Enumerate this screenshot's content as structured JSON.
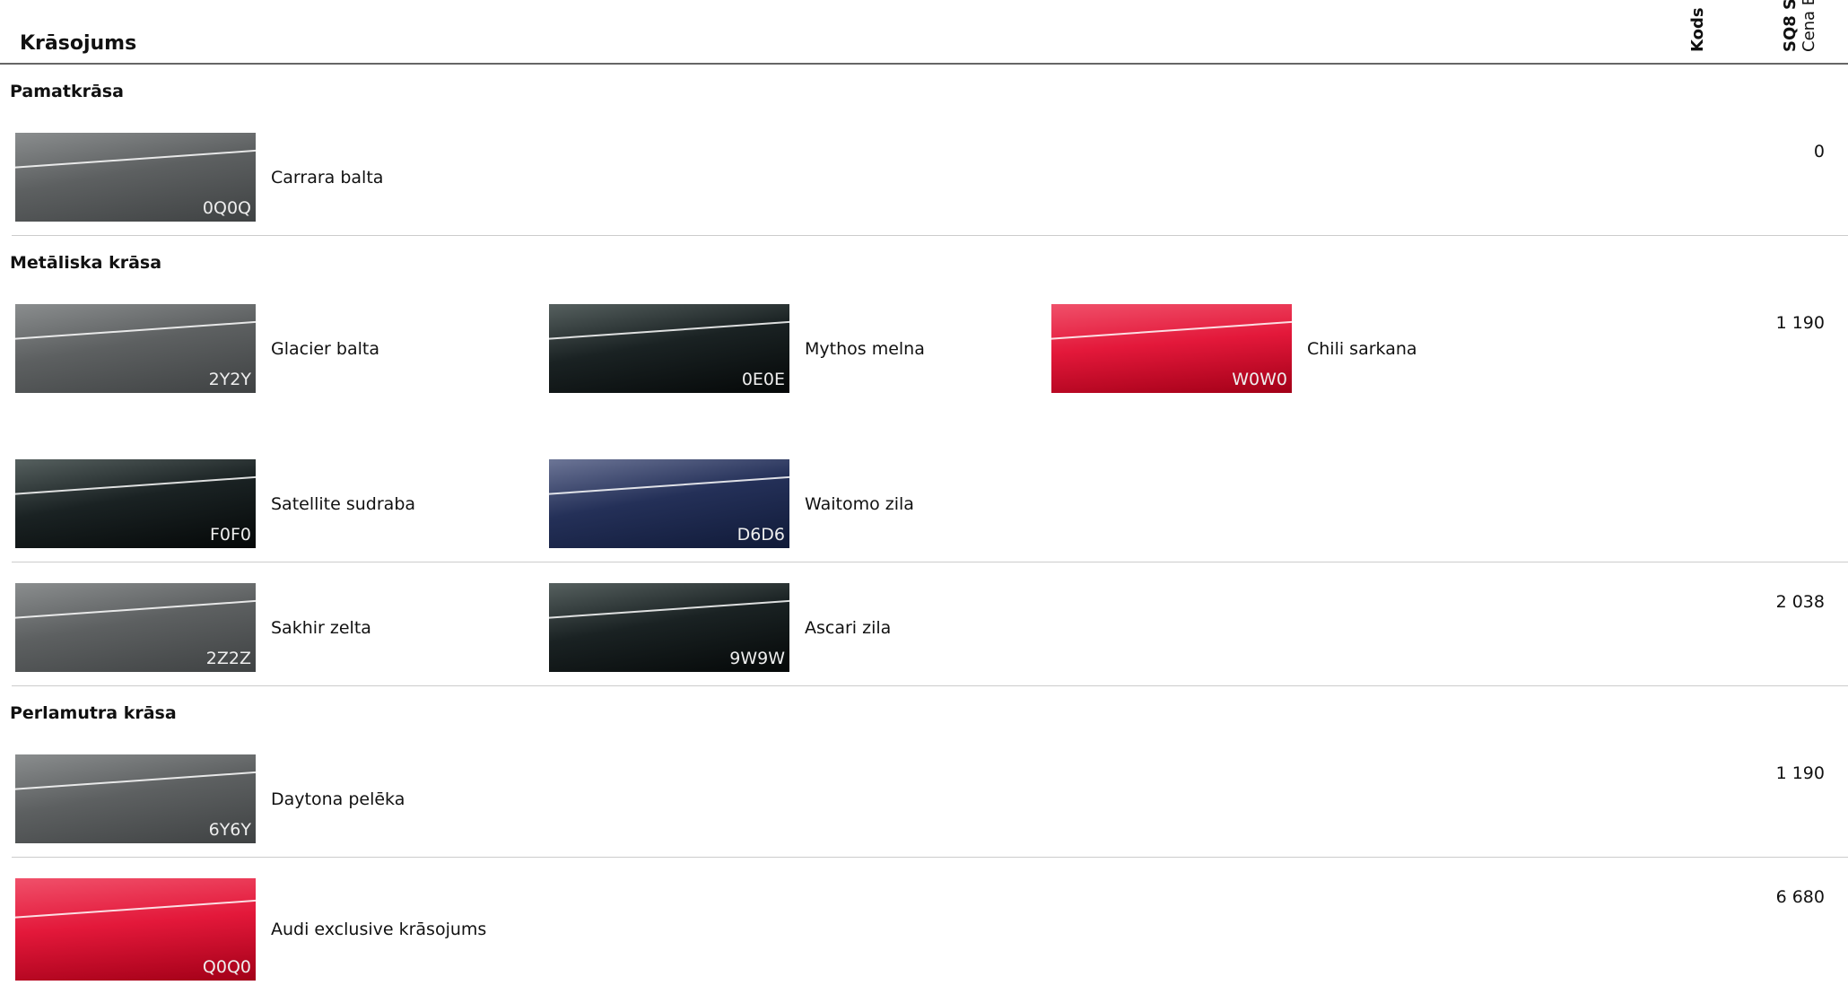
{
  "header": {
    "title": "Krāsojums",
    "code_column": "Kods",
    "model_column": "SQ8 S",
    "price_column": "Cena E"
  },
  "sections": [
    {
      "title": "Pamatkrāsa",
      "groups": [
        {
          "price": "0",
          "colors": [
            {
              "code": "0Q0Q",
              "name": "Carrara balta",
              "color": "gray"
            }
          ]
        }
      ]
    },
    {
      "title": "Metāliska krāsa",
      "groups": [
        {
          "price": "1 190",
          "colors": [
            {
              "code": "2Y2Y",
              "name": "Glacier balta",
              "color": "gray"
            },
            {
              "code": "0E0E",
              "name": "Mythos melna",
              "color": "black"
            },
            {
              "code": "W0W0",
              "name": "Chili sarkana",
              "color": "red"
            },
            {
              "code": "F0F0",
              "name": "Satellite sudraba",
              "color": "black"
            },
            {
              "code": "D6D6",
              "name": "Waitomo zila",
              "color": "navy"
            }
          ]
        },
        {
          "price": "2 038",
          "colors": [
            {
              "code": "2Z2Z",
              "name": "Sakhir zelta",
              "color": "gray"
            },
            {
              "code": "9W9W",
              "name": "Ascari zila",
              "color": "black"
            }
          ]
        }
      ]
    },
    {
      "title": "Perlamutra krāsa",
      "groups": [
        {
          "price": "1 190",
          "colors": [
            {
              "code": "6Y6Y",
              "name": "Daytona pelēka",
              "color": "gray"
            }
          ]
        },
        {
          "price": "6 680",
          "colors": [
            {
              "code": "Q0Q0",
              "name": "Audi exclusive krāsojums",
              "color": "red"
            }
          ]
        }
      ]
    }
  ]
}
